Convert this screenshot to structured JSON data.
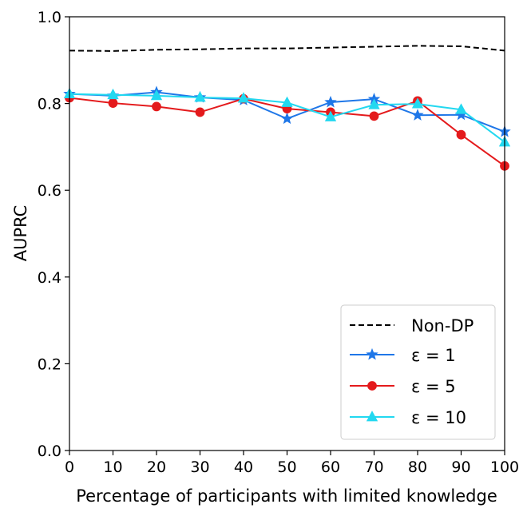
{
  "chart_data": {
    "type": "line",
    "title": "",
    "xlabel": "Percentage of participants with limited knowledge",
    "ylabel": "AUPRC",
    "xlim": [
      0,
      100
    ],
    "ylim": [
      0.0,
      1.0
    ],
    "xticks": [
      "0",
      "10",
      "20",
      "30",
      "40",
      "50",
      "60",
      "70",
      "80",
      "90",
      "100"
    ],
    "yticks": [
      "0.0",
      "0.2",
      "0.4",
      "0.6",
      "0.8",
      "1.0"
    ],
    "x": [
      0,
      10,
      20,
      30,
      40,
      50,
      60,
      70,
      80,
      90,
      100
    ],
    "legend_position": "lower-right",
    "series": [
      {
        "name": "Non-DP",
        "color": "#000000",
        "style": "dashed",
        "marker": "none",
        "values": [
          0.922,
          0.921,
          0.924,
          0.925,
          0.927,
          0.927,
          0.929,
          0.931,
          0.933,
          0.932,
          0.922
        ]
      },
      {
        "name": "ε = 1",
        "color": "#1f77e8",
        "style": "solid",
        "marker": "star",
        "values": [
          0.822,
          0.818,
          0.826,
          0.814,
          0.808,
          0.765,
          0.803,
          0.81,
          0.773,
          0.774,
          0.735
        ]
      },
      {
        "name": "ε = 5",
        "color": "#e41a1c",
        "style": "solid",
        "marker": "circle",
        "values": [
          0.813,
          0.801,
          0.793,
          0.78,
          0.811,
          0.788,
          0.78,
          0.771,
          0.806,
          0.728,
          0.656
        ]
      },
      {
        "name": "ε = 10",
        "color": "#22d8f0",
        "style": "solid",
        "marker": "triangle",
        "values": [
          0.822,
          0.82,
          0.818,
          0.814,
          0.812,
          0.802,
          0.769,
          0.797,
          0.799,
          0.786,
          0.711
        ]
      }
    ]
  }
}
